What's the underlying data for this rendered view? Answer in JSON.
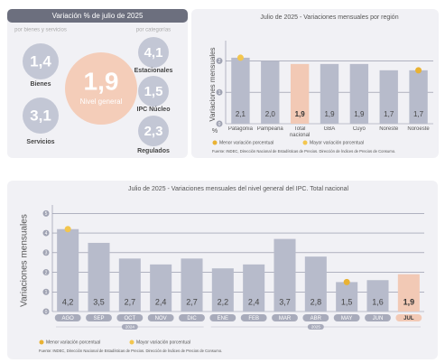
{
  "summary": {
    "title": "Variación % de julio de 2025",
    "groups": [
      {
        "title": "por bienes y servicios",
        "items": [
          {
            "value": "1,4",
            "label": "Bienes"
          },
          {
            "value": "3,1",
            "label": "Servicios"
          }
        ]
      },
      {
        "title": "por categorías",
        "items": [
          {
            "value": "4,1",
            "label": "Estacionales"
          },
          {
            "value": "1,5",
            "label": "IPC Núcleo"
          },
          {
            "value": "2,3",
            "label": "Regulados"
          }
        ]
      }
    ],
    "main": {
      "value": "1,9",
      "label": "Nivel general"
    }
  },
  "chart_data": [
    {
      "type": "bar",
      "title": "Julio de 2025 - Variaciones mensuales por región",
      "y_label": "Variaciones mensuales",
      "unit": "%",
      "categories": [
        "Patagonia",
        "Pampeana",
        "Total nacional",
        "GBA",
        "Cuyo",
        "Noreste",
        "Noroeste"
      ],
      "values": [
        2.1,
        2.0,
        1.9,
        1.9,
        1.9,
        1.7,
        1.7
      ],
      "value_labels": [
        "2,1",
        "2,0",
        "1,9",
        "1,9",
        "1,9",
        "1,7",
        "1,7"
      ],
      "color": "#b7bbcb",
      "highlight_color": "#f2c9b5",
      "highlight_index": 2,
      "ylim": [
        0,
        2.5
      ],
      "yticks": [
        0,
        1,
        2
      ],
      "grid": true,
      "legend": [
        {
          "label": "Menor variación porcentual",
          "color": "#e9b233",
          "index": 6
        },
        {
          "label": "Mayor variación porcentual",
          "color": "#f3c64e",
          "index": 0
        }
      ],
      "source": "Fuente: INDEC, Dirección Nacional de Estadísticas de Precios. Dirección de Índices de Precios de Consumo."
    },
    {
      "type": "bar",
      "title": "Julio de 2025 - Variaciones mensuales del nivel general del IPC. Total nacional",
      "y_label": "Variaciones mensuales",
      "categories": [
        "AGO",
        "SEP",
        "OCT",
        "NOV",
        "DIC",
        "ENE",
        "FEB",
        "MAR",
        "ABR",
        "MAY",
        "JUN",
        "JUL"
      ],
      "values": [
        4.2,
        3.5,
        2.7,
        2.4,
        2.7,
        2.2,
        2.4,
        3.7,
        2.8,
        1.5,
        1.6,
        1.9
      ],
      "value_labels": [
        "4,2",
        "3,5",
        "2,7",
        "2,4",
        "2,7",
        "2,2",
        "2,4",
        "3,7",
        "2,8",
        "1,5",
        "1,6",
        "1,9"
      ],
      "color": "#b7bbcb",
      "highlight_color": "#f2c9b5",
      "highlight_index": 11,
      "ylim": [
        0,
        5.2
      ],
      "yticks": [
        0,
        1,
        2,
        3,
        4,
        5
      ],
      "grid": true,
      "year_groups": [
        {
          "label": "2024",
          "from": 0,
          "to": 4
        },
        {
          "label": "2025",
          "from": 5,
          "to": 11
        }
      ],
      "legend": [
        {
          "label": "Menor variación porcentual",
          "color": "#e9b233",
          "index": 9
        },
        {
          "label": "Mayor variación porcentual",
          "color": "#f3c64e",
          "index": 0
        }
      ],
      "source": "Fuente: INDEC, Dirección Nacional de Estadísticas de Precios. Dirección de Índices de Precios de Consumo."
    }
  ]
}
